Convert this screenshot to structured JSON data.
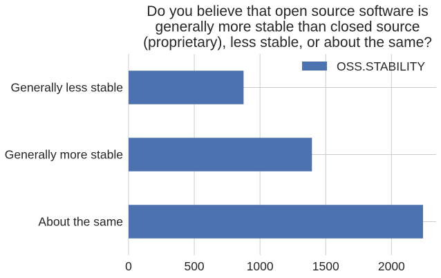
{
  "chart_data": {
    "type": "bar",
    "orientation": "horizontal",
    "title_lines": [
      "Do you believe that open source software is",
      "generally more stable than closed source",
      "(proprietary), less stable, or about the same?"
    ],
    "categories": [
      "About the same",
      "Generally more stable",
      "Generally less stable"
    ],
    "series": [
      {
        "name": "OSS.STABILITY",
        "values": [
          2240,
          1395,
          875
        ]
      }
    ],
    "xlabel": "",
    "ylabel": "",
    "xlim": [
      0,
      2340
    ],
    "xticks": [
      0,
      500,
      1000,
      1500,
      2000
    ],
    "grid": true,
    "legend_position": "top-right",
    "colors": {
      "bar": "#4c72b0",
      "grid": "#cccccc"
    }
  }
}
